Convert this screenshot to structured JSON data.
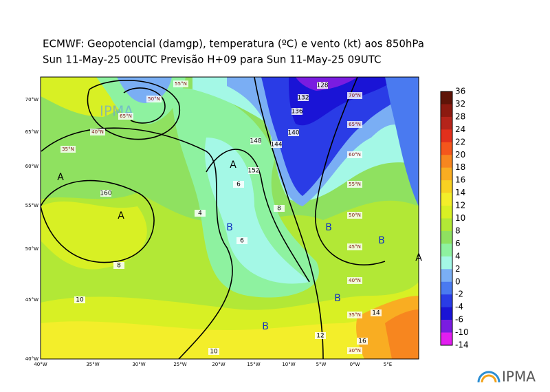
{
  "header": {
    "title_lines": [
      "ECMWF:  Geopotencial (damgp), temperatura (ºC) e vento (kt) aos 850hPa",
      "Sun 11-May-25 00UTC Previsão H+09 para Sun 11-May-25 09UTC"
    ]
  },
  "colorbar": {
    "labels": [
      "36",
      "32",
      "28",
      "24",
      "22",
      "20",
      "18",
      "16",
      "14",
      "12",
      "10",
      "8",
      "6",
      "4",
      "2",
      "0",
      "-2",
      "-4",
      "-6",
      "-10",
      "-14"
    ],
    "colors": [
      "#5e1408",
      "#8c1a10",
      "#b5241a",
      "#e2301c",
      "#f4561c",
      "#f7861f",
      "#f9ad22",
      "#f8d122",
      "#f3ee2a",
      "#d8f024",
      "#b2e836",
      "#8fe160",
      "#8ef2a0",
      "#a4f8e6",
      "#7aaef4",
      "#4a7af0",
      "#2a3ce6",
      "#1a14d6",
      "#7a1ce0",
      "#e21ef0"
    ]
  },
  "map": {
    "lat_labels": [
      "70°W",
      "65°W",
      "60°W",
      "55°W",
      "50°W",
      "45°W",
      "40°W"
    ],
    "lon_labels": [
      "40°W",
      "35°W",
      "30°W",
      "25°W",
      "20°W",
      "15°W",
      "10°W",
      "5°W",
      "0°W",
      "5°E"
    ],
    "grid_labels": [
      "50°N",
      "55°N",
      "65°N",
      "40°N",
      "35°N",
      "70°N",
      "65°N",
      "60°N",
      "55°N",
      "50°N",
      "45°N",
      "40°N",
      "35°N",
      "30°N"
    ],
    "pressure_centers": [
      "A",
      "A",
      "A",
      "B",
      "B",
      "B",
      "B",
      "B",
      "A"
    ],
    "contour_labels": [
      "160",
      "152",
      "148",
      "144",
      "140",
      "136",
      "132",
      "128",
      "6",
      "6",
      "8",
      "8",
      "10",
      "10",
      "12",
      "14",
      "16",
      "4"
    ],
    "watermark": "IPMA"
  },
  "footer": {
    "logo": "IPMA"
  }
}
